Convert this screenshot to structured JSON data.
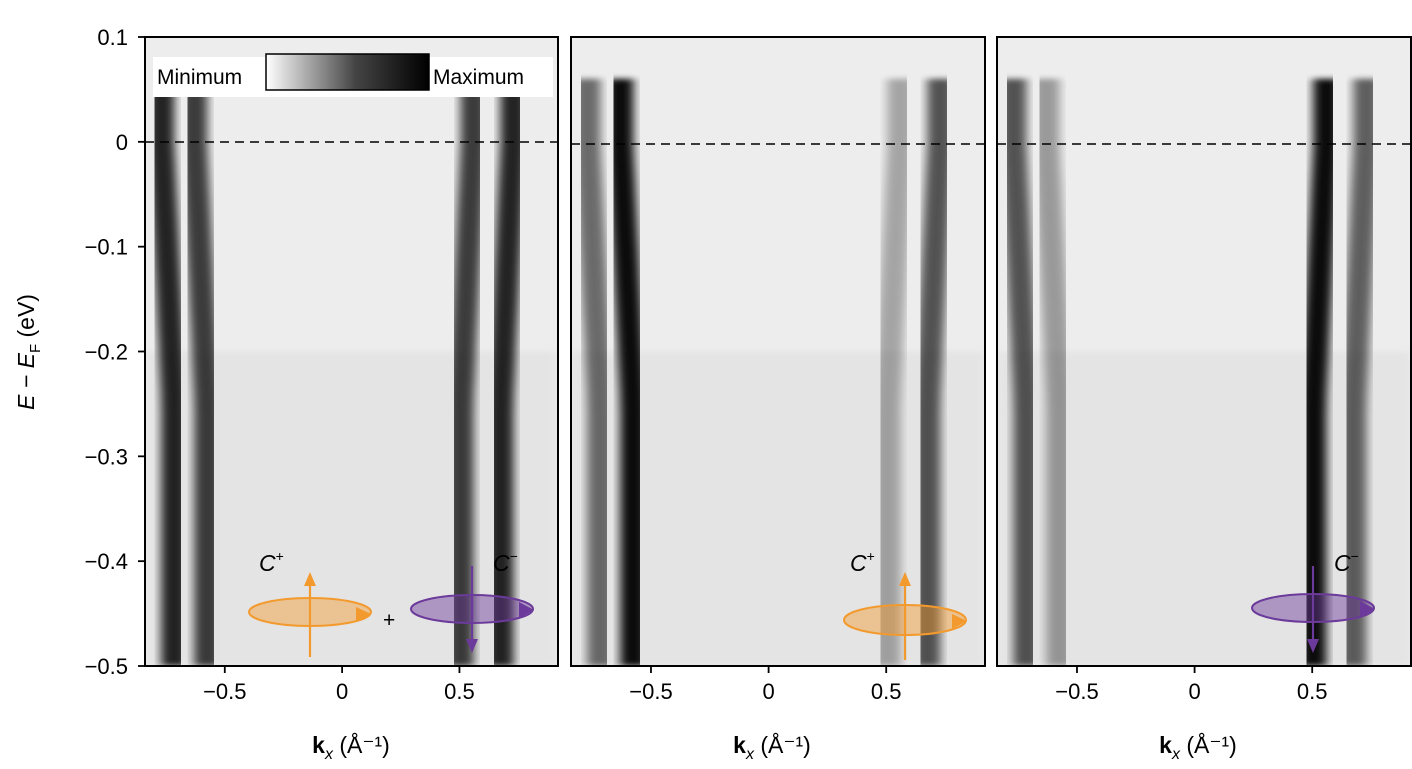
{
  "chart_data": [
    {
      "type": "heatmap",
      "panel": "C+ + C-",
      "xlabel_bold": "k",
      "xlabel_sub": "x",
      "xlabel_unit": " (Å⁻¹)",
      "ylabel_main": "E − E",
      "ylabel_sub": "F",
      "ylabel_unit": " (eV)",
      "xlim": [
        -0.84,
        0.92
      ],
      "ylim": [
        -0.5,
        0.1
      ],
      "xticks": [
        -0.5,
        0,
        0.5
      ],
      "xtick_labels": [
        "−0.5",
        "0",
        "0.5"
      ],
      "yticks": [
        0.1,
        0,
        -0.1,
        -0.2,
        -0.3,
        -0.4,
        -0.5
      ],
      "ytick_labels": [
        "0.1",
        "0",
        "−0.1",
        "−0.2",
        "−0.3",
        "−0.4",
        "−0.5"
      ],
      "fermi_level": 0,
      "bands": [
        {
          "k0": -0.77,
          "strength": 0.85
        },
        {
          "k0": -0.63,
          "strength": 0.75
        },
        {
          "k0": 0.56,
          "strength": 0.75
        },
        {
          "k0": 0.73,
          "strength": 0.85
        }
      ],
      "colorbar": {
        "min_label": "Minimum",
        "max_label": "Maximum"
      },
      "annotations": [
        {
          "base": "C",
          "sup": "+",
          "color": "#f39a2e"
        },
        {
          "plus": "+"
        },
        {
          "base": "C",
          "sup": "−",
          "color": "#6b3a9a"
        }
      ]
    },
    {
      "type": "heatmap",
      "panel": "C+",
      "xlabel_bold": "k",
      "xlabel_sub": "x",
      "xlabel_unit": " (Å⁻¹)",
      "xlim": [
        -0.84,
        0.92
      ],
      "ylim": [
        -0.5,
        0.1
      ],
      "xticks": [
        -0.5,
        0,
        0.5
      ],
      "xtick_labels": [
        "−0.5",
        "0",
        "0.5"
      ],
      "fermi_level": 0,
      "bands": [
        {
          "k0": -0.77,
          "strength": 0.55
        },
        {
          "k0": -0.63,
          "strength": 0.95
        },
        {
          "k0": 0.56,
          "strength": 0.3
        },
        {
          "k0": 0.73,
          "strength": 0.65
        }
      ],
      "annotations": [
        {
          "base": "C",
          "sup": "+",
          "color": "#f39a2e"
        }
      ]
    },
    {
      "type": "heatmap",
      "panel": "C-",
      "xlabel_bold": "k",
      "xlabel_sub": "x",
      "xlabel_unit": " (Å⁻¹)",
      "xlim": [
        -0.84,
        0.92
      ],
      "ylim": [
        -0.5,
        0.1
      ],
      "xticks": [
        -0.5,
        0,
        0.5
      ],
      "xtick_labels": [
        "−0.5",
        "0",
        "0.5"
      ],
      "fermi_level": 0,
      "bands": [
        {
          "k0": -0.77,
          "strength": 0.65
        },
        {
          "k0": -0.63,
          "strength": 0.35
        },
        {
          "k0": 0.56,
          "strength": 0.95
        },
        {
          "k0": 0.73,
          "strength": 0.6
        }
      ],
      "annotations": [
        {
          "base": "C",
          "sup": "−",
          "color": "#6b3a9a"
        }
      ]
    }
  ]
}
